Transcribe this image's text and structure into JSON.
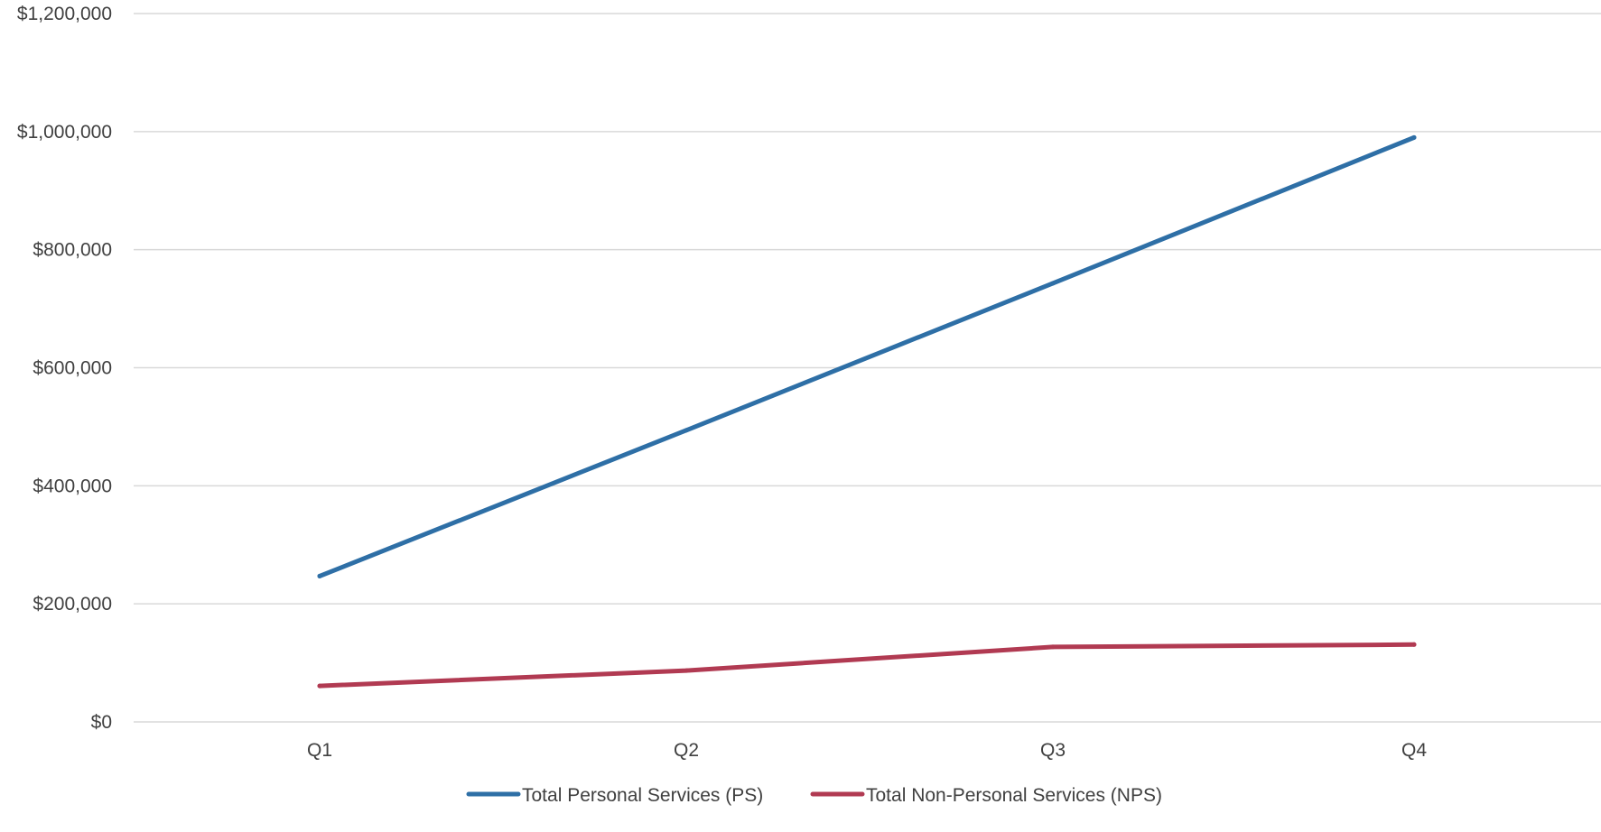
{
  "chart_data": {
    "type": "line",
    "categories": [
      "Q1",
      "Q2",
      "Q3",
      "Q4"
    ],
    "series": [
      {
        "name": "Total Personal Services (PS)",
        "color": "#2e6fa6",
        "values": [
          247000,
          494000,
          743000,
          990000
        ]
      },
      {
        "name": "Total Non-Personal Services (NPS)",
        "color": "#b13a52",
        "values": [
          61000,
          87000,
          127000,
          131000
        ]
      }
    ],
    "ylim": [
      0,
      1200000
    ],
    "yticks": [
      0,
      200000,
      400000,
      600000,
      800000,
      1000000,
      1200000
    ],
    "ytick_labels": [
      "$0",
      "$200,000",
      "$400,000",
      "$600,000",
      "$800,000",
      "$1,000,000",
      "$1,200,000"
    ],
    "grid": true,
    "legend": "bottom-center",
    "gridline_color": "#d9d9d9",
    "text_color": "#404040"
  }
}
